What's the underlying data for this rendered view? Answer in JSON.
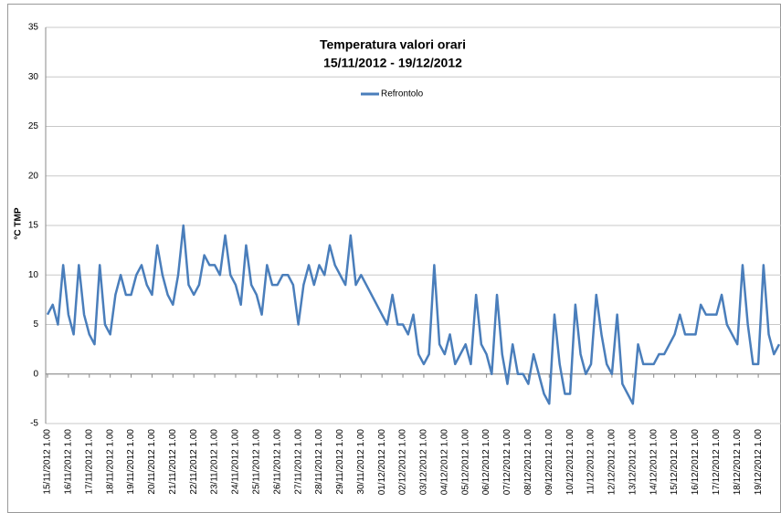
{
  "chart_data": {
    "type": "line",
    "title": "Temperatura valori orari",
    "subtitle": "15/11/2012 - 19/12/2012",
    "y_label": "°C TMP",
    "categories": [
      "15/11/2012 1.00",
      null,
      null,
      null,
      "16/11/2012 1.00",
      null,
      null,
      null,
      "17/11/2012 1.00",
      null,
      null,
      null,
      "18/11/2012 1.00",
      null,
      null,
      null,
      "19/11/2012 1.00",
      null,
      null,
      null,
      "20/11/2012 1.00",
      null,
      null,
      null,
      "21/11/2012 1.00",
      null,
      null,
      null,
      "22/11/2012 1.00",
      null,
      null,
      null,
      "23/11/2012 1.00",
      null,
      null,
      null,
      "24/11/2012 1.00",
      null,
      null,
      null,
      "25/11/2012 1.00",
      null,
      null,
      null,
      "26/11/2012 1.00",
      null,
      null,
      null,
      "27/11/2012 1.00",
      null,
      null,
      null,
      "28/11/2012 1.00",
      null,
      null,
      null,
      "29/11/2012 1.00",
      null,
      null,
      null,
      "30/11/2012 1.00",
      null,
      null,
      null,
      "01/12/2012 1.00",
      null,
      null,
      null,
      "02/12/2012 1.00",
      null,
      null,
      null,
      "03/12/2012 1.00",
      null,
      null,
      null,
      "04/12/2012 1.00",
      null,
      null,
      null,
      "05/12/2012 1.00",
      null,
      null,
      null,
      "06/12/2012 1.00",
      null,
      null,
      null,
      "07/12/2012 1.00",
      null,
      null,
      null,
      "08/12/2012 1.00",
      null,
      null,
      null,
      "09/12/2012 1.00",
      null,
      null,
      null,
      "10/12/2012 1.00",
      null,
      null,
      null,
      "11/12/2012 1.00",
      null,
      null,
      null,
      "12/12/2012 1.00",
      null,
      null,
      null,
      "13/12/2012 1.00",
      null,
      null,
      null,
      "14/12/2012 1.00",
      null,
      null,
      null,
      "15/12/2012 1.00",
      null,
      null,
      null,
      "16/12/2012 1.00",
      null,
      null,
      null,
      "17/12/2012 1.00",
      null,
      null,
      null,
      "18/12/2012 1.00",
      null,
      null,
      null,
      "19/12/2012 1.00",
      null,
      null,
      null,
      null
    ],
    "series": [
      {
        "name": "Refrontolo",
        "color": "#4a7ebb",
        "values": [
          6,
          7,
          5,
          11,
          6,
          4,
          11,
          6,
          4,
          3,
          11,
          5,
          4,
          8,
          10,
          8,
          8,
          10,
          11,
          9,
          8,
          13,
          10,
          8,
          7,
          10,
          15,
          9,
          8,
          9,
          12,
          11,
          11,
          10,
          14,
          10,
          9,
          7,
          13,
          9,
          8,
          6,
          11,
          9,
          9,
          10,
          10,
          9,
          5,
          9,
          11,
          9,
          11,
          10,
          13,
          11,
          10,
          9,
          14,
          9,
          10,
          9,
          8,
          7,
          6,
          5,
          8,
          5,
          5,
          4,
          6,
          2,
          1,
          2,
          11,
          3,
          2,
          4,
          1,
          2,
          3,
          1,
          8,
          3,
          2,
          0,
          8,
          2,
          -1,
          3,
          0,
          0,
          -1,
          2,
          0,
          -2,
          -3,
          6,
          1,
          -2,
          -2,
          7,
          2,
          0,
          1,
          8,
          4,
          1,
          0,
          6,
          -1,
          -2,
          -3,
          3,
          1,
          1,
          1,
          2,
          2,
          3,
          4,
          6,
          4,
          4,
          4,
          7,
          6,
          6,
          6,
          8,
          5,
          4,
          3,
          11,
          5,
          1,
          1,
          11,
          4,
          2,
          3
        ]
      }
    ],
    "ylim": [
      -5,
      35
    ],
    "yticks": [
      -5,
      0,
      5,
      10,
      15,
      20,
      25,
      30,
      35
    ],
    "grid": true,
    "legend": "top"
  }
}
